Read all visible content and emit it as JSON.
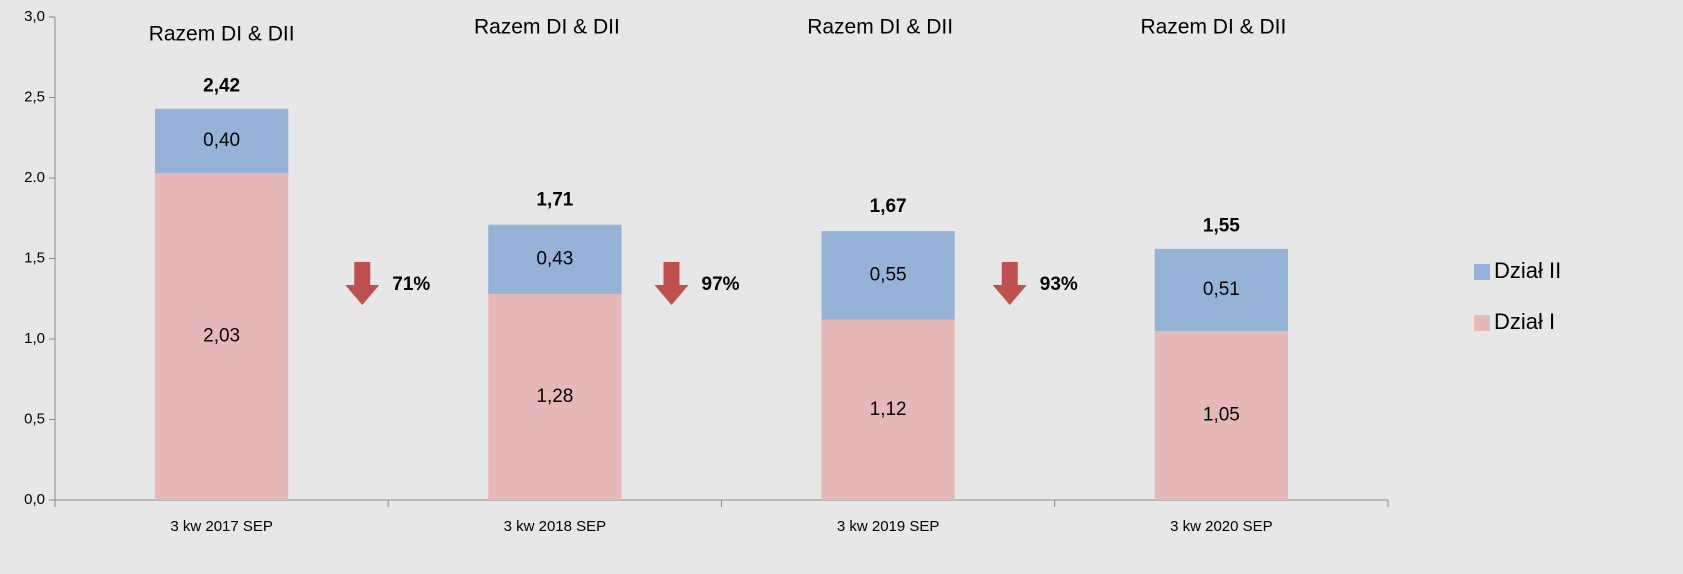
{
  "chart_data": {
    "type": "stacked_bar",
    "categories": [
      "3 kw 2017 SEP",
      "3 kw 2018 SEP",
      "3 kw 2019 SEP",
      "3 kw 2020 SEP"
    ],
    "series": [
      {
        "name": "Dział I",
        "color": "#e6b9b8",
        "values": [
          2.03,
          1.28,
          1.12,
          1.05
        ],
        "value_labels": [
          "2,03",
          "1,28",
          "1,12",
          "1,05"
        ]
      },
      {
        "name": "Dział II",
        "color": "#95b3d7",
        "values": [
          0.4,
          0.43,
          0.55,
          0.51
        ],
        "value_labels": [
          "0,40",
          "0,43",
          "0,55",
          "0,51"
        ]
      }
    ],
    "totals": {
      "values": [
        2.42,
        1.71,
        1.67,
        1.55
      ],
      "value_labels": [
        "2,42",
        "1,71",
        "1,67",
        "1,55"
      ]
    },
    "group_titles": [
      "Razem DI & DII",
      "Razem DI & DII",
      "Razem DI & DII",
      "Razem DI & DII"
    ],
    "changes": [
      "71%",
      "97%",
      "93%"
    ],
    "change_color": "#c0504d",
    "ylim": [
      0,
      3
    ],
    "yticks": [
      {
        "value": 0,
        "label": "0,0"
      },
      {
        "value": 0.5,
        "label": "0,5"
      },
      {
        "value": 1,
        "label": "1,0"
      },
      {
        "value": 1.5,
        "label": "1,5"
      },
      {
        "value": 2,
        "label": "2.0"
      },
      {
        "value": 2.5,
        "label": "2,5"
      },
      {
        "value": 3,
        "label": "3,0"
      }
    ],
    "legend": "right"
  }
}
